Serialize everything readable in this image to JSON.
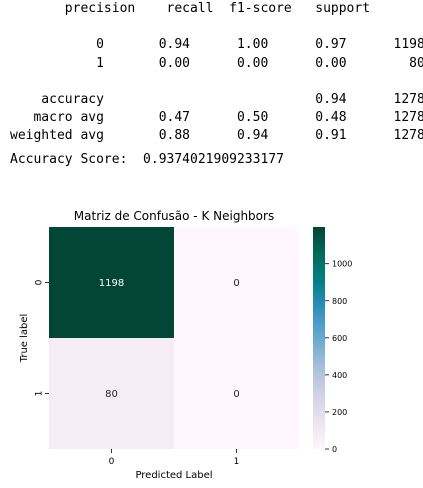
{
  "report": {
    "header": "       precision    recall  f1-score   support",
    "rows": [
      "",
      "           0       0.94      1.00      0.97      1198",
      "           1       0.00      0.00      0.00        80",
      "",
      "    accuracy                           0.94      1278",
      "   macro avg       0.47      0.50      0.48      1278",
      "weighted avg       0.88      0.94      0.91      1278"
    ]
  },
  "accuracy_line": "Accuracy Score:  0.9374021909233177",
  "chart_data": {
    "type": "heatmap",
    "title": "Matriz de Confusão - K Neighbors",
    "xlabel": "Predicted Label",
    "ylabel": "True label",
    "x_categories": [
      "0",
      "1"
    ],
    "y_categories": [
      "0",
      "1"
    ],
    "values": [
      [
        1198,
        0
      ],
      [
        80,
        0
      ]
    ],
    "colorbar": {
      "min": 0,
      "max": 1198,
      "ticks": [
        0,
        200,
        400,
        600,
        800,
        1000
      ]
    },
    "colormap": "PuBuGn"
  }
}
